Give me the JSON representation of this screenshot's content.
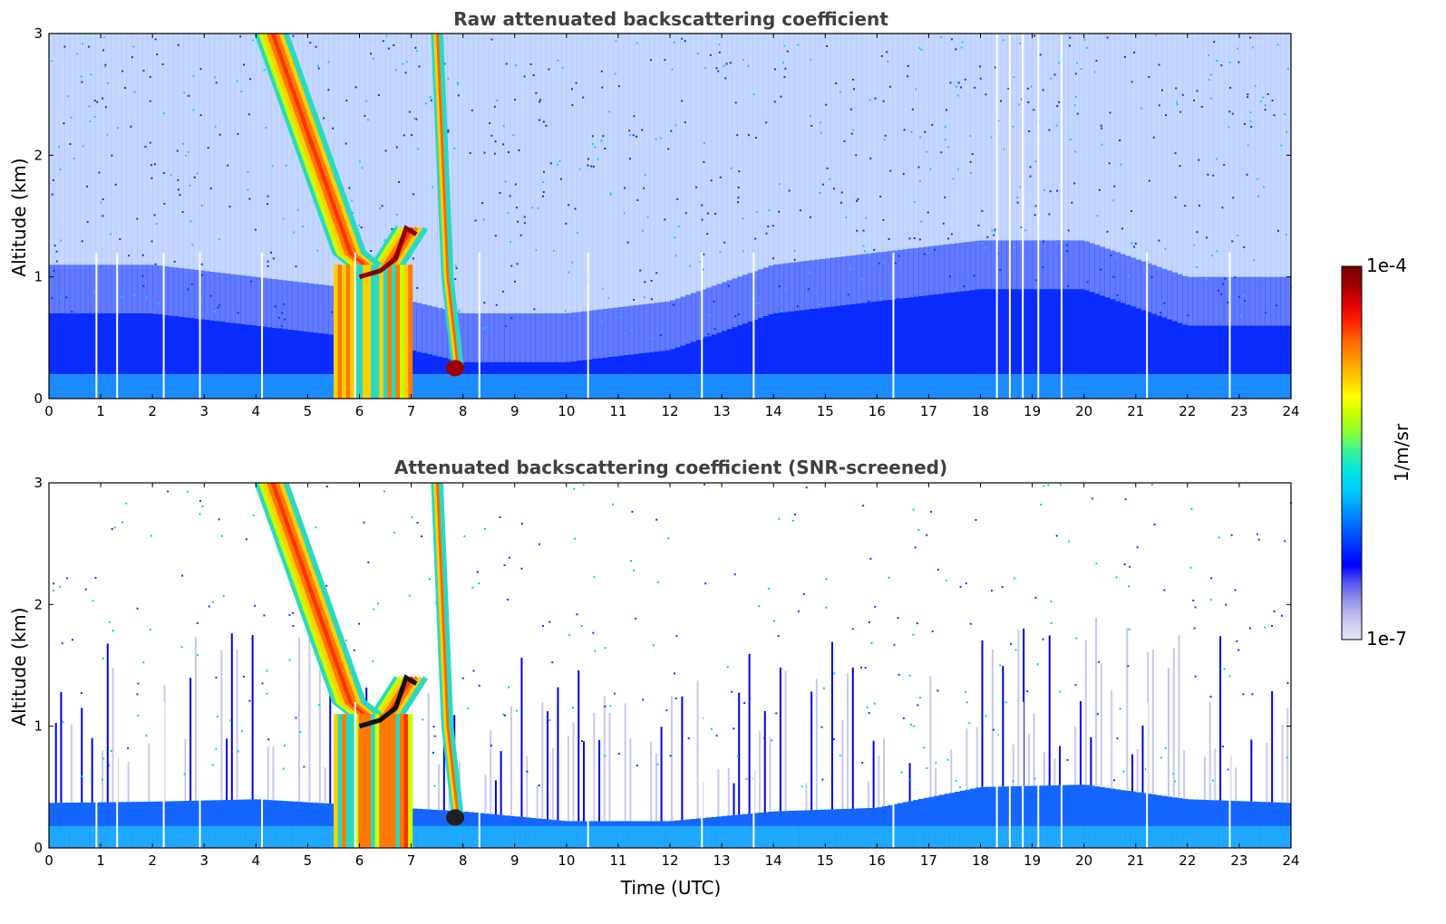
{
  "chart_data": [
    {
      "type": "heatmap",
      "title": "Raw attenuated backscattering coefficient",
      "xlabel": "",
      "ylabel": "Altitude (km)",
      "xlim": [
        0,
        24
      ],
      "ylim": [
        0,
        3
      ],
      "xticks": [
        "0",
        "1",
        "2",
        "3",
        "4",
        "5",
        "6",
        "7",
        "8",
        "9",
        "10",
        "11",
        "12",
        "13",
        "14",
        "15",
        "16",
        "17",
        "18",
        "19",
        "20",
        "21",
        "22",
        "23",
        "24"
      ],
      "yticks": [
        "0",
        "1",
        "2",
        "3"
      ],
      "features": [
        {
          "name": "boundary layer top",
          "x": [
            0,
            2,
            4,
            6,
            8,
            10,
            12,
            14,
            16,
            18,
            20,
            22,
            24
          ],
          "y": [
            0.7,
            0.7,
            0.6,
            0.5,
            0.3,
            0.3,
            0.4,
            0.7,
            0.8,
            0.9,
            0.9,
            0.6,
            0.6
          ]
        },
        {
          "name": "falling precipitation band",
          "x": [
            4.3,
            4.8,
            5.3,
            5.8,
            6.4,
            7.0
          ],
          "y": [
            3.0,
            2.4,
            1.8,
            1.2,
            1.0,
            1.4
          ]
        },
        {
          "name": "cloud near 7.5-8 UTC",
          "x": [
            7.5,
            7.7,
            7.9
          ],
          "y": [
            3.0,
            1.0,
            0.25
          ]
        }
      ]
    },
    {
      "type": "heatmap",
      "title": "Attenuated backscattering coefficient (SNR-screened)",
      "xlabel": "Time (UTC)",
      "ylabel": "Altitude (km)",
      "xlim": [
        0,
        24
      ],
      "ylim": [
        0,
        3
      ],
      "xticks": [
        "0",
        "1",
        "2",
        "3",
        "4",
        "5",
        "6",
        "7",
        "8",
        "9",
        "10",
        "11",
        "12",
        "13",
        "14",
        "15",
        "16",
        "17",
        "18",
        "19",
        "20",
        "21",
        "22",
        "23",
        "24"
      ],
      "yticks": [
        "0",
        "1",
        "2",
        "3"
      ],
      "features": [
        {
          "name": "screened layer top",
          "x": [
            0,
            2,
            4,
            6,
            8,
            10,
            12,
            14,
            16,
            18,
            20,
            22,
            24
          ],
          "y": [
            0.37,
            0.38,
            0.4,
            0.35,
            0.3,
            0.22,
            0.22,
            0.3,
            0.33,
            0.5,
            0.52,
            0.4,
            0.37
          ]
        }
      ]
    }
  ],
  "colorbar": {
    "label": "1/m/sr",
    "max_label": "1e-4",
    "min_label": "1e-7",
    "colors": [
      "#e6e6f5",
      "#c8c8ee",
      "#9a9ae8",
      "#5a5af0",
      "#0000ff",
      "#0033ff",
      "#0066ff",
      "#0099ff",
      "#00ccff",
      "#00e5e5",
      "#33f0a0",
      "#80ff40",
      "#c0ff00",
      "#ffff00",
      "#ffcc00",
      "#ff9900",
      "#ff6600",
      "#ff2200",
      "#e00000",
      "#a00000",
      "#7a0000"
    ]
  }
}
